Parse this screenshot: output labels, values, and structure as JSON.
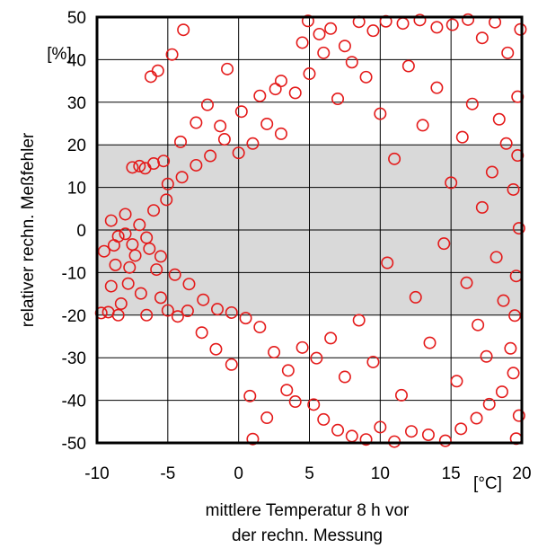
{
  "chart_data": {
    "type": "scatter",
    "title": "",
    "xlabel_lines": [
      "mittlere Temperatur 8 h vor",
      "der rechn. Messung"
    ],
    "x_unit": "[°C]",
    "ylabel": "relativer rechn. Meßfehler",
    "y_unit": "[%]",
    "xlim": [
      -10,
      20
    ],
    "ylim": [
      -50,
      50
    ],
    "x_ticks": [
      "-10",
      "-5",
      "0",
      "5",
      "10",
      "15",
      "20"
    ],
    "y_ticks": [
      "-50",
      "-40",
      "-30",
      "-20",
      "-10",
      "0",
      "10",
      "20",
      "30",
      "40",
      "50"
    ],
    "grid": true,
    "shaded_band": [
      -20,
      20
    ],
    "marker": "open-circle",
    "colors": {
      "marker": "#e41a1a",
      "band": "#d9d9d9",
      "grid": "#000000"
    },
    "series": [
      {
        "points": [
          [
            -9.7,
            -19.5
          ],
          [
            -9.5,
            -5
          ],
          [
            -9.2,
            -19.3
          ],
          [
            -9,
            -13.2
          ],
          [
            -8.8,
            -3.6
          ],
          [
            -8.7,
            -8.2
          ],
          [
            -8.5,
            -20
          ],
          [
            -8.3,
            -17.3
          ],
          [
            -8,
            -0.9
          ],
          [
            -7.8,
            -12.6
          ],
          [
            -7.7,
            -8.8
          ],
          [
            -7.5,
            14.7
          ],
          [
            -7.3,
            -6
          ],
          [
            -7,
            15
          ],
          [
            -6.9,
            -14.9
          ],
          [
            -6.6,
            14.5
          ],
          [
            -6.5,
            -20
          ],
          [
            -6.3,
            -4.4
          ],
          [
            -6.2,
            36
          ],
          [
            -6,
            15.6
          ],
          [
            -5.8,
            -9.3
          ],
          [
            -5.7,
            37.4
          ],
          [
            -5.5,
            -15.9
          ],
          [
            -5.3,
            16.2
          ],
          [
            -5.1,
            7.1
          ],
          [
            -5,
            -18.9
          ],
          [
            -4.7,
            41.2
          ],
          [
            -4.3,
            -20.3
          ],
          [
            -4.1,
            20.7
          ],
          [
            -3.9,
            47
          ],
          [
            -3.6,
            -19
          ],
          [
            -3,
            25.2
          ],
          [
            -2.6,
            -24.1
          ],
          [
            -2.2,
            29.4
          ],
          [
            -1.6,
            -28
          ],
          [
            -1.3,
            24.4
          ],
          [
            -0.8,
            37.8
          ],
          [
            -0.5,
            -31.6
          ],
          [
            0.2,
            27.8
          ],
          [
            0.8,
            -39
          ],
          [
            1,
            -49.1
          ],
          [
            1.5,
            31.5
          ],
          [
            2,
            -44.1
          ],
          [
            2.6,
            33.1
          ],
          [
            3,
            35
          ],
          [
            3.4,
            -37.6
          ],
          [
            4,
            -40.3
          ],
          [
            4.5,
            44
          ],
          [
            4.9,
            49.1
          ],
          [
            5.3,
            -41
          ],
          [
            5.7,
            46
          ],
          [
            6,
            -44.5
          ],
          [
            6.5,
            47.3
          ],
          [
            7,
            -47
          ],
          [
            7.5,
            43.2
          ],
          [
            8,
            -48.4
          ],
          [
            8.5,
            48.9
          ],
          [
            9,
            -49.2
          ],
          [
            9.5,
            46.8
          ],
          [
            10,
            -46.3
          ],
          [
            10.4,
            49
          ],
          [
            11,
            -49.7
          ],
          [
            11.6,
            48.5
          ],
          [
            12.2,
            -47.3
          ],
          [
            12.8,
            49.3
          ],
          [
            13.4,
            -48.1
          ],
          [
            14,
            47.6
          ],
          [
            14.6,
            -49.5
          ],
          [
            15.1,
            48.2
          ],
          [
            15.7,
            -46.7
          ],
          [
            16.2,
            49.4
          ],
          [
            16.8,
            -44.2
          ],
          [
            17.2,
            45.1
          ],
          [
            17.7,
            -40.9
          ],
          [
            18.1,
            48.8
          ],
          [
            18.6,
            -38
          ],
          [
            19,
            41.6
          ],
          [
            19.4,
            -33.6
          ],
          [
            19.7,
            31.3
          ],
          [
            19.8,
            -43.6
          ],
          [
            19.9,
            47.1
          ],
          [
            19.6,
            -49
          ],
          [
            19.8,
            0.4
          ],
          [
            19.5,
            -20.1
          ],
          [
            19.7,
            17.5
          ],
          [
            19.6,
            -10.8
          ],
          [
            19.4,
            9.5
          ],
          [
            19.2,
            -27.8
          ],
          [
            18.9,
            20.3
          ],
          [
            18.7,
            -16.6
          ],
          [
            18.4,
            26
          ],
          [
            18.2,
            -6.4
          ],
          [
            17.9,
            13.6
          ],
          [
            17.5,
            -29.7
          ],
          [
            17.2,
            5.3
          ],
          [
            16.9,
            -22.3
          ],
          [
            16.5,
            29.6
          ],
          [
            16.1,
            -12.4
          ],
          [
            15.8,
            21.8
          ],
          [
            15.4,
            -35.5
          ],
          [
            15,
            11.1
          ],
          [
            14.5,
            -3.2
          ],
          [
            14,
            33.4
          ],
          [
            13.5,
            -26.5
          ],
          [
            13,
            24.6
          ],
          [
            12.5,
            -15.8
          ],
          [
            12,
            38.5
          ],
          [
            11.5,
            -38.8
          ],
          [
            11,
            16.7
          ],
          [
            10.5,
            -7.7
          ],
          [
            10,
            27.3
          ],
          [
            9.5,
            -31
          ],
          [
            9,
            35.9
          ],
          [
            8.5,
            -21.2
          ],
          [
            8,
            39.4
          ],
          [
            7.5,
            -34.5
          ],
          [
            7,
            30.8
          ],
          [
            6.5,
            -25.4
          ],
          [
            6,
            41.6
          ],
          [
            5.5,
            -30.1
          ],
          [
            5,
            36.7
          ],
          [
            4.5,
            -27.6
          ],
          [
            4,
            32.2
          ],
          [
            3.5,
            -33
          ],
          [
            3,
            22.6
          ],
          [
            2.5,
            -28.7
          ],
          [
            2,
            24.9
          ],
          [
            1.5,
            -22.8
          ],
          [
            1,
            20.3
          ],
          [
            0.5,
            -20.7
          ],
          [
            0,
            18.1
          ],
          [
            -0.5,
            -19.4
          ],
          [
            -1,
            21.3
          ],
          [
            -1.5,
            -18.6
          ],
          [
            -2,
            17.4
          ],
          [
            -2.5,
            -16.4
          ],
          [
            -3,
            15.2
          ],
          [
            -3.5,
            -12.7
          ],
          [
            -4,
            12.4
          ],
          [
            -4.5,
            -10.5
          ],
          [
            -5,
            10.8
          ],
          [
            -5.5,
            -6.2
          ],
          [
            -6,
            4.6
          ],
          [
            -6.5,
            -1.8
          ],
          [
            -7,
            1.2
          ],
          [
            -7.5,
            -3.4
          ],
          [
            -8,
            3.7
          ],
          [
            -8.5,
            -1.5
          ],
          [
            -9,
            2.2
          ]
        ]
      }
    ]
  }
}
